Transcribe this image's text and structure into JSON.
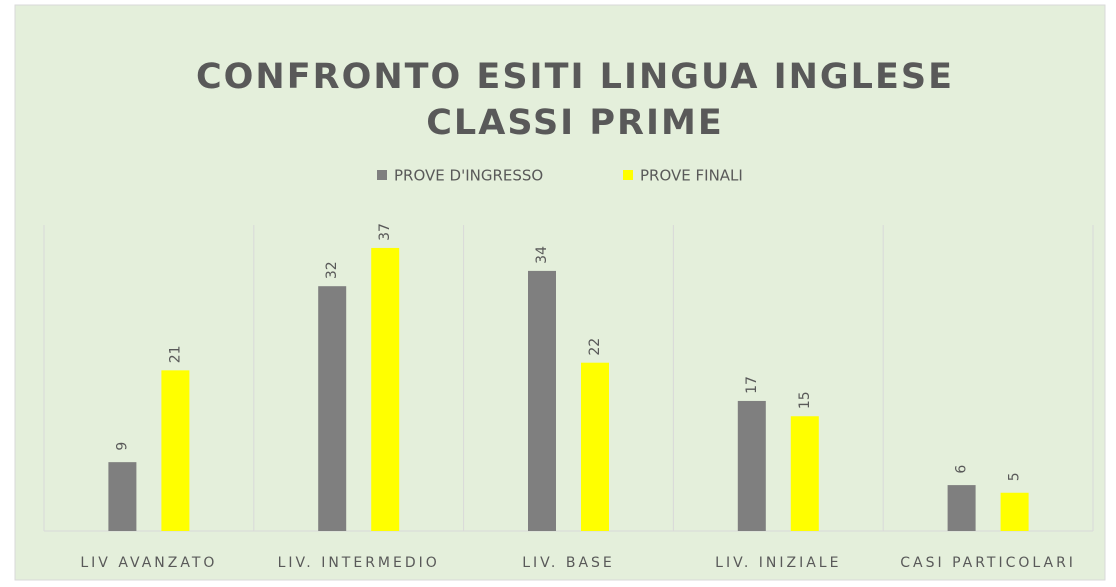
{
  "chart_data": {
    "type": "bar",
    "title_lines": [
      "CONFRONTO ESITI LINGUA INGLESE",
      "CLASSI PRIME"
    ],
    "categories": [
      "LIV AVANZATO",
      "LIV. INTERMEDIO",
      "LIV. BASE",
      "LIV. INIZIALE",
      "CASI PARTICOLARI"
    ],
    "series": [
      {
        "name": "PROVE D'INGRESSO",
        "color": "#7f7f7f",
        "values": [
          9,
          32,
          34,
          17,
          6
        ]
      },
      {
        "name": "PROVE FINALI",
        "color": "#ffff00",
        "values": [
          21,
          37,
          22,
          15,
          5
        ]
      }
    ],
    "ylim": [
      0,
      40
    ],
    "legend": "top",
    "data_labels": true
  }
}
